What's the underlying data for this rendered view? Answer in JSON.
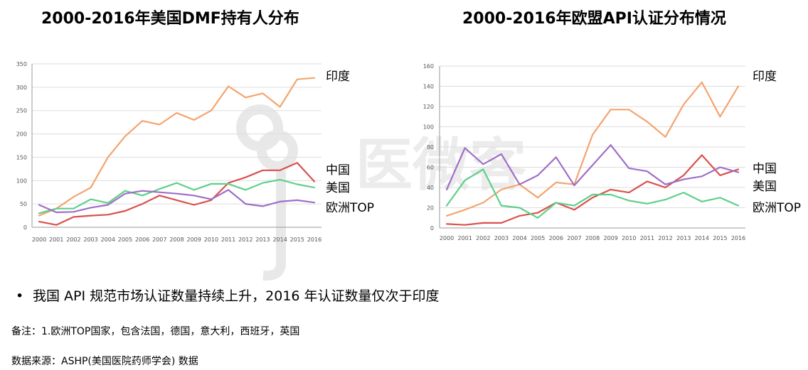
{
  "charts": [
    {
      "title": "2000-2016年美国DMF持有人分布",
      "type": "line",
      "categories": [
        "2000",
        "2001",
        "2002",
        "2003",
        "2004",
        "2005",
        "2006",
        "2007",
        "2008",
        "2009",
        "2010",
        "2011",
        "2012",
        "2013",
        "2014",
        "2015",
        "2016"
      ],
      "ylim": [
        0,
        350
      ],
      "yticks": [
        "0",
        "50",
        "100",
        "150",
        "200",
        "250",
        "300",
        "350"
      ],
      "series": [
        {
          "name": "印度",
          "color": "#f4a46e",
          "values": [
            25,
            40,
            65,
            85,
            150,
            195,
            228,
            220,
            245,
            230,
            250,
            302,
            278,
            287,
            258,
            317,
            320
          ]
        },
        {
          "name": "中国",
          "color": "#d9514e",
          "values": [
            12,
            5,
            22,
            25,
            27,
            35,
            50,
            68,
            58,
            48,
            58,
            95,
            107,
            122,
            122,
            138,
            98
          ]
        },
        {
          "name": "美国",
          "color": "#5ed08a",
          "values": [
            30,
            40,
            40,
            60,
            52,
            78,
            68,
            82,
            95,
            80,
            93,
            93,
            80,
            95,
            102,
            92,
            85
          ]
        },
        {
          "name": "欧洲TOP",
          "color": "#9e6fc8",
          "values": [
            48,
            32,
            33,
            42,
            48,
            72,
            78,
            75,
            72,
            68,
            60,
            80,
            50,
            45,
            55,
            58,
            53
          ]
        }
      ],
      "legend_labels": [
        "印度",
        "中国",
        "美国",
        "欧洲TOP"
      ]
    },
    {
      "title": "2000-2016年欧盟API认证分布情况",
      "type": "line",
      "categories": [
        "2000",
        "2001",
        "2002",
        "2003",
        "2004",
        "2005",
        "2006",
        "2007",
        "2008",
        "2009",
        "2010",
        "2011",
        "2012",
        "2013",
        "2014",
        "2015",
        "2016"
      ],
      "ylim": [
        0,
        160
      ],
      "yticks": [
        "0",
        "20",
        "40",
        "60",
        "80",
        "100",
        "120",
        "140",
        "160"
      ],
      "series": [
        {
          "name": "印度",
          "color": "#f4a46e",
          "values": [
            12,
            18,
            25,
            38,
            43,
            30,
            45,
            43,
            92,
            117,
            117,
            105,
            90,
            122,
            144,
            110,
            140
          ]
        },
        {
          "name": "中国",
          "color": "#d9514e",
          "values": [
            4,
            3,
            5,
            5,
            12,
            15,
            25,
            18,
            30,
            38,
            35,
            46,
            40,
            52,
            72,
            52,
            58
          ]
        },
        {
          "name": "美国",
          "color": "#5ed08a",
          "values": [
            22,
            47,
            58,
            22,
            20,
            10,
            25,
            22,
            33,
            33,
            27,
            24,
            28,
            35,
            26,
            30,
            22
          ]
        },
        {
          "name": "欧洲TOP",
          "color": "#9e6fc8",
          "values": [
            38,
            79,
            63,
            73,
            43,
            52,
            70,
            42,
            62,
            82,
            59,
            56,
            43,
            48,
            51,
            60,
            55
          ]
        }
      ],
      "legend_labels": [
        "印度",
        "中国",
        "美国",
        "欧洲TOP"
      ]
    }
  ],
  "bullet": "我国 API 规范市场认证数量持续上升，2016 年认证数量仅次于印度",
  "bullet_symbol": "•",
  "note1": "备注：1.欧洲TOP国家，包含法国，德国，意大利，西班牙，英国",
  "note2": "数据来源：ASHP(美国医院药师学会) 数据",
  "watermark_text": "医微客",
  "colors": {
    "grid": "#dddddd",
    "axis": "#999999",
    "watermark": "#e6e6e6"
  }
}
